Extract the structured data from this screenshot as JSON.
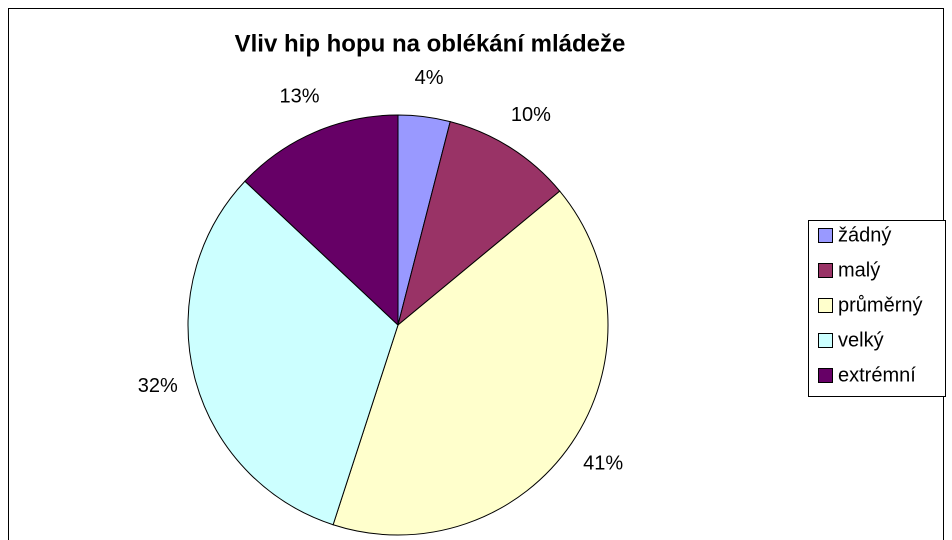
{
  "chart_data": {
    "type": "pie",
    "title": "Vliv hip hopu na oblékání mládeže",
    "categories": [
      "žádný",
      "malý",
      "průměrný",
      "velký",
      "extrémní"
    ],
    "values": [
      4,
      10,
      41,
      32,
      13
    ],
    "value_labels": [
      "4%",
      "10%",
      "41%",
      "32%",
      "13%"
    ],
    "colors": [
      "#9999ff",
      "#993366",
      "#ffffcc",
      "#ccffff",
      "#660066"
    ],
    "legend": "right"
  }
}
